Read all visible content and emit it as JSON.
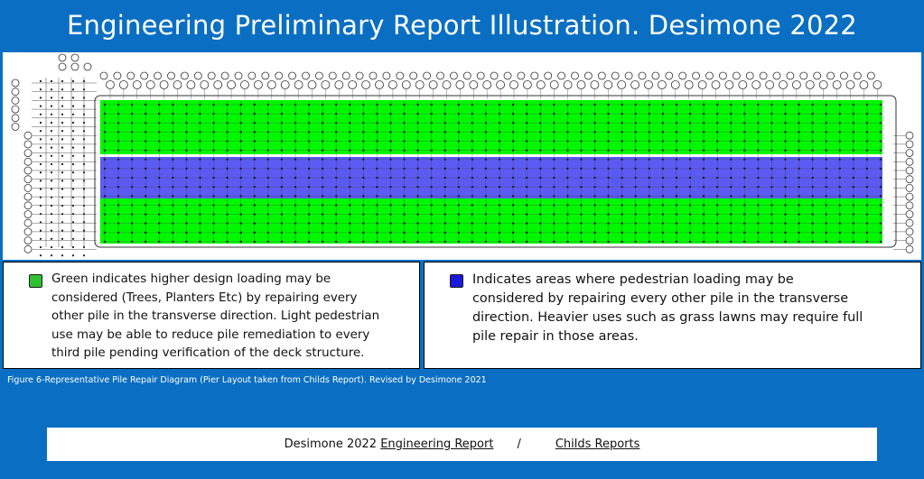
{
  "title": "Engineering Preliminary Report Illustration. Desimone 2022",
  "diagram": {
    "green_color": "#00f700",
    "blue_color": "#5b5bf2",
    "grid_color": "#1a1a1a"
  },
  "legend": {
    "green": {
      "color": "#2fc12f",
      "lines": [
        "Green indicates higher design loading may be",
        "considered (Trees, Planters Etc) by repairing every",
        "other pile in the transverse direction. Light pedestrian",
        "use may be able to reduce pile remediation to every",
        "third pile pending verification of the deck structure."
      ]
    },
    "blue": {
      "color": "#1a1adb",
      "lines": [
        "Indicates areas where pedestrian loading may be",
        "considered by repairing every other pile in the transverse",
        "direction. Heavier uses such as grass lawns may require full",
        "pile repair in those areas."
      ]
    }
  },
  "caption": "Figure 6-Representative Pile Repair Diagram (Pier Layout taken from Childs Report). Revised by Desimone 2021",
  "footer": {
    "prefix": "Desimone 2022",
    "link1": "Engineering Report",
    "separator": "/",
    "link2": "Childs Reports"
  }
}
